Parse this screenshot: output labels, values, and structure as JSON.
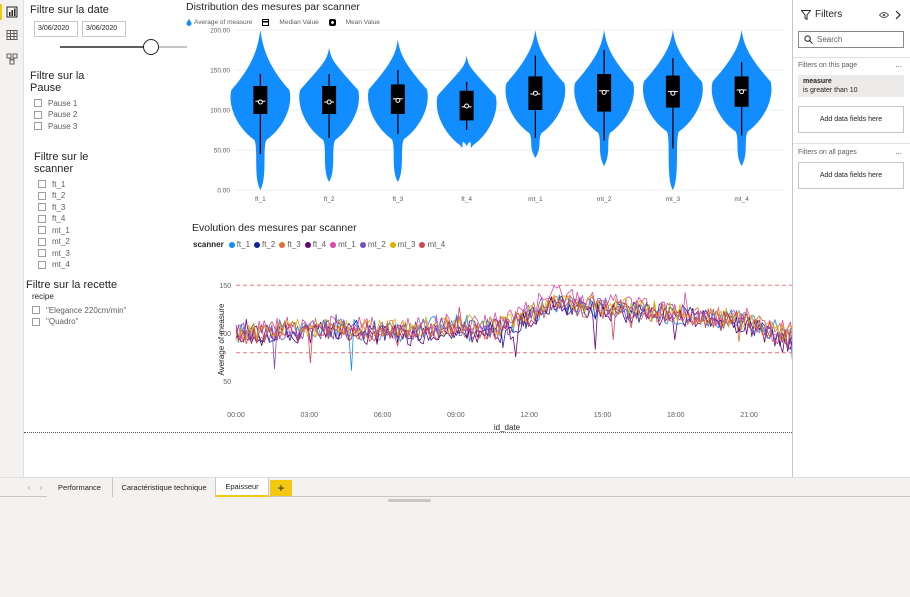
{
  "slicers": {
    "date": {
      "title": "Filtre sur la date",
      "start": "3/06/2020",
      "end": "3/06/2020"
    },
    "pause": {
      "title": "Filtre sur la Pause",
      "items": [
        "Pause 1",
        "Pause 2",
        "Pause 3"
      ]
    },
    "scanner": {
      "title": "Filtre sur le scanner",
      "items": [
        "ft_1",
        "ft_2",
        "ft_3",
        "ft_4",
        "mt_1",
        "mt_2",
        "mt_3",
        "mt_4"
      ]
    },
    "recette": {
      "title": "Filtre sur la recette",
      "field": "recipe",
      "items": [
        "\"Elegance 220cm/min\"",
        "\"Quadro\""
      ]
    }
  },
  "violin": {
    "title": "Distribution des mesures par scanner",
    "legend": [
      "Average of measure",
      "Median Value",
      "Mean Value"
    ]
  },
  "line": {
    "title": "Evolution des mesures par scanner",
    "legend_title": "scanner"
  },
  "filters_pane": {
    "title": "Filters",
    "search_placeholder": "Search",
    "on_this_page": "Filters on this page",
    "filter_field": "measure",
    "filter_condition": "is greater than 10",
    "add_fields": "Add data fields here",
    "on_all_pages": "Filters on all pages",
    "add_fields_all": "Add data fields here",
    "more": "..."
  },
  "tabs": [
    {
      "label": "Performance",
      "active": false
    },
    {
      "label": "Caractéristique technique",
      "active": false
    },
    {
      "label": "Epaisseur",
      "active": true
    }
  ],
  "add_tab_label": "+",
  "colors": {
    "violin": "#118dff",
    "ref_line": "#e8767e",
    "accent": "#f2c811"
  },
  "chart_data": [
    {
      "type": "violin",
      "title": "Distribution des mesures par scanner",
      "categories": [
        "ft_1",
        "ft_2",
        "ft_3",
        "ft_4",
        "mt_1",
        "mt_2",
        "mt_3",
        "mt_4"
      ],
      "ylim": [
        0,
        200
      ],
      "yticks": [
        "0.00",
        "50.00",
        "100.00",
        "150.00",
        "200.00"
      ],
      "series": [
        {
          "name": "Average of measure",
          "values": [
            110,
            110,
            112,
            104,
            120,
            122,
            121,
            123
          ]
        },
        {
          "name": "Median Value",
          "values": [
            111,
            110,
            114,
            104,
            120,
            124,
            123,
            125
          ]
        },
        {
          "name": "Mean Value",
          "values": [
            110,
            110,
            112,
            105,
            121,
            122,
            121,
            123
          ]
        }
      ],
      "box": [
        {
          "category": "ft_1",
          "q1": 95,
          "q3": 130,
          "whisker_low": 45,
          "whisker_high": 145
        },
        {
          "category": "ft_2",
          "q1": 95,
          "q3": 130,
          "whisker_low": 65,
          "whisker_high": 145
        },
        {
          "category": "ft_3",
          "q1": 95,
          "q3": 132,
          "whisker_low": 70,
          "whisker_high": 150
        },
        {
          "category": "ft_4",
          "q1": 87,
          "q3": 124,
          "whisker_low": 75,
          "whisker_high": 135
        },
        {
          "category": "mt_1",
          "q1": 100,
          "q3": 142,
          "whisker_low": 65,
          "whisker_high": 168
        },
        {
          "category": "mt_2",
          "q1": 98,
          "q3": 145,
          "whisker_low": 62,
          "whisker_high": 175
        },
        {
          "category": "mt_3",
          "q1": 103,
          "q3": 143,
          "whisker_low": 52,
          "whisker_high": 165
        },
        {
          "category": "mt_4",
          "q1": 104,
          "q3": 142,
          "whisker_low": 68,
          "whisker_high": 160
        }
      ],
      "range": [
        {
          "category": "ft_1",
          "min": 0,
          "max": 200
        },
        {
          "category": "ft_2",
          "min": 10,
          "max": 178
        },
        {
          "category": "ft_3",
          "min": 10,
          "max": 188
        },
        {
          "category": "ft_4",
          "min": 55,
          "max": 168
        },
        {
          "category": "mt_1",
          "min": 40,
          "max": 252
        },
        {
          "category": "mt_2",
          "min": 30,
          "max": 237
        },
        {
          "category": "mt_3",
          "min": 0,
          "max": 247
        },
        {
          "category": "mt_4",
          "min": 30,
          "max": 205
        }
      ]
    },
    {
      "type": "line",
      "title": "Evolution des mesures par scanner",
      "xlabel": "id_date",
      "ylabel": "Average of measure",
      "xticks": [
        "00:00",
        "03:00",
        "06:00",
        "09:00",
        "12:00",
        "15:00",
        "18:00",
        "21:00"
      ],
      "yticks": [
        50,
        100,
        150
      ],
      "ylim": [
        30,
        170
      ],
      "reference_lines": [
        150,
        80
      ],
      "series": [
        {
          "name": "ft_1",
          "color": "#118dff",
          "hourly_mean": [
            100,
            102,
            104,
            103,
            105,
            104,
            103,
            102,
            108,
            110,
            107,
            108,
            118,
            132,
            128,
            126,
            124,
            122,
            120,
            118,
            115,
            112,
            105,
            95
          ]
        },
        {
          "name": "ft_2",
          "color": "#12239e",
          "hourly_mean": [
            98,
            100,
            102,
            101,
            103,
            104,
            102,
            100,
            104,
            106,
            103,
            104,
            115,
            130,
            127,
            125,
            123,
            121,
            119,
            116,
            113,
            110,
            100,
            88
          ]
        },
        {
          "name": "ft_3",
          "color": "#e66c37",
          "hourly_mean": [
            101,
            103,
            104,
            105,
            106,
            105,
            104,
            103,
            105,
            107,
            104,
            108,
            120,
            134,
            130,
            128,
            125,
            123,
            121,
            118,
            116,
            113,
            104,
            96
          ]
        },
        {
          "name": "ft_4",
          "color": "#6b007b",
          "hourly_mean": [
            96,
            98,
            100,
            99,
            101,
            100,
            99,
            98,
            100,
            102,
            98,
            102,
            114,
            129,
            126,
            124,
            121,
            119,
            117,
            114,
            111,
            108,
            96,
            82
          ]
        },
        {
          "name": "mt_1",
          "color": "#e044a7",
          "hourly_mean": [
            103,
            105,
            107,
            106,
            108,
            107,
            106,
            105,
            108,
            110,
            109,
            112,
            125,
            140,
            136,
            132,
            129,
            126,
            123,
            120,
            118,
            115,
            108,
            100
          ]
        },
        {
          "name": "mt_2",
          "color": "#744ec2",
          "hourly_mean": [
            100,
            102,
            104,
            103,
            105,
            104,
            103,
            102,
            105,
            107,
            105,
            108,
            119,
            134,
            130,
            128,
            125,
            123,
            120,
            117,
            114,
            111,
            103,
            92
          ]
        },
        {
          "name": "mt_3",
          "color": "#d9b300",
          "hourly_mean": [
            102,
            104,
            106,
            105,
            107,
            106,
            105,
            104,
            107,
            109,
            106,
            110,
            122,
            136,
            132,
            129,
            126,
            124,
            122,
            119,
            116,
            113,
            106,
            98
          ]
        },
        {
          "name": "mt_4",
          "color": "#d64550",
          "hourly_mean": [
            99,
            101,
            103,
            102,
            104,
            103,
            102,
            101,
            104,
            106,
            103,
            106,
            117,
            131,
            128,
            126,
            123,
            121,
            119,
            116,
            113,
            110,
            102,
            90
          ]
        }
      ]
    }
  ]
}
